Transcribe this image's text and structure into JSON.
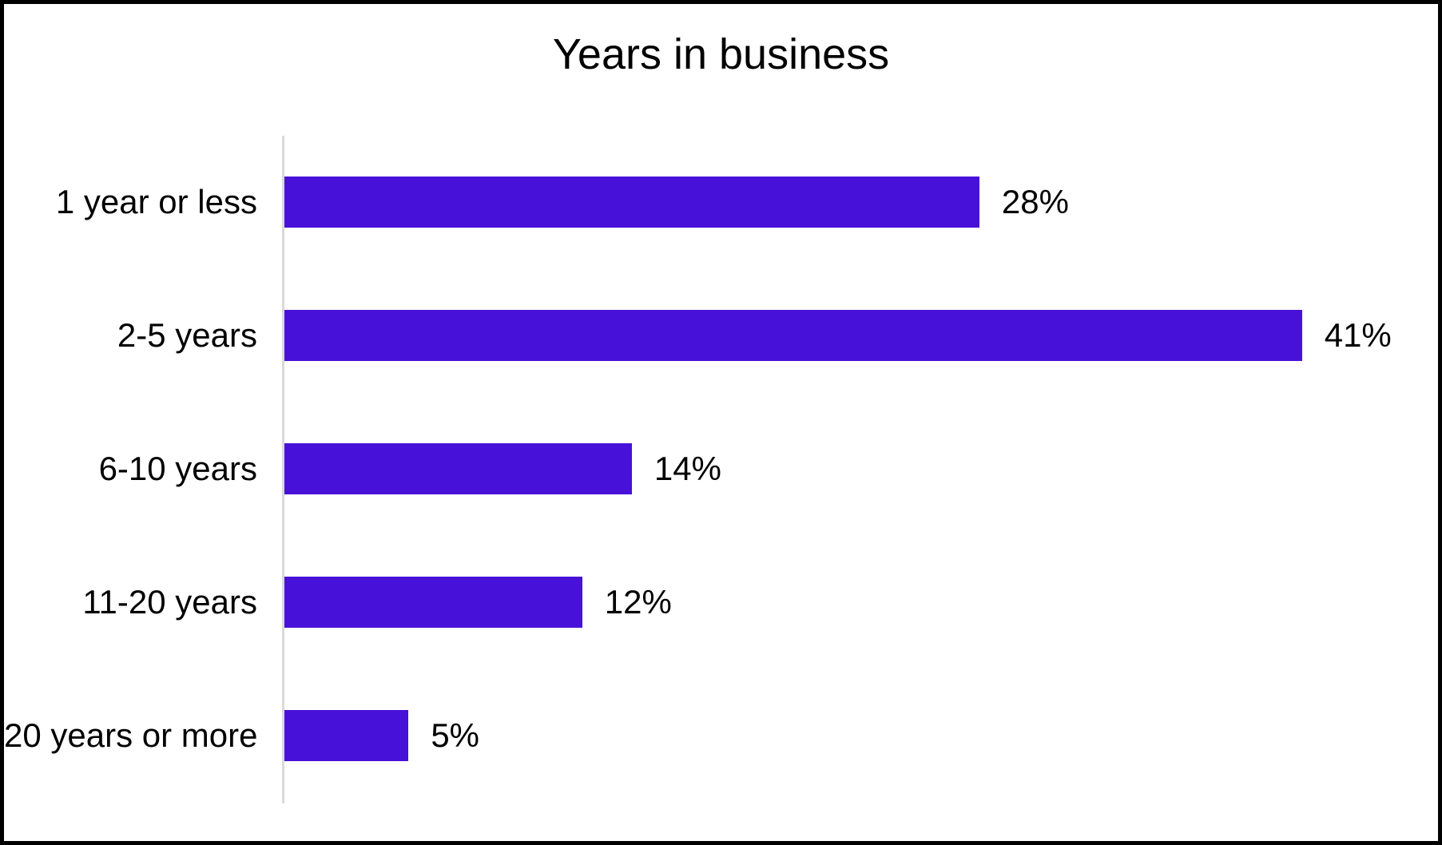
{
  "title": "Years in business",
  "colors": {
    "bar": "#4711d9",
    "axis_line": "#d9d9d9",
    "text": "#000000",
    "frame_border": "#000000",
    "background": "#ffffff"
  },
  "chart_data": {
    "type": "bar",
    "orientation": "horizontal",
    "title": "Years in business",
    "categories": [
      "1 year or less",
      "2-5 years",
      "6-10 years",
      "11-20 years",
      "20 years or more"
    ],
    "values": [
      28,
      41,
      14,
      12,
      5
    ],
    "data_labels": [
      "28%",
      "41%",
      "14%",
      "12%",
      "5%"
    ],
    "value_suffix": "%",
    "xlim": [
      0,
      45
    ],
    "grid": false,
    "legend": false,
    "xlabel": "",
    "ylabel": ""
  }
}
